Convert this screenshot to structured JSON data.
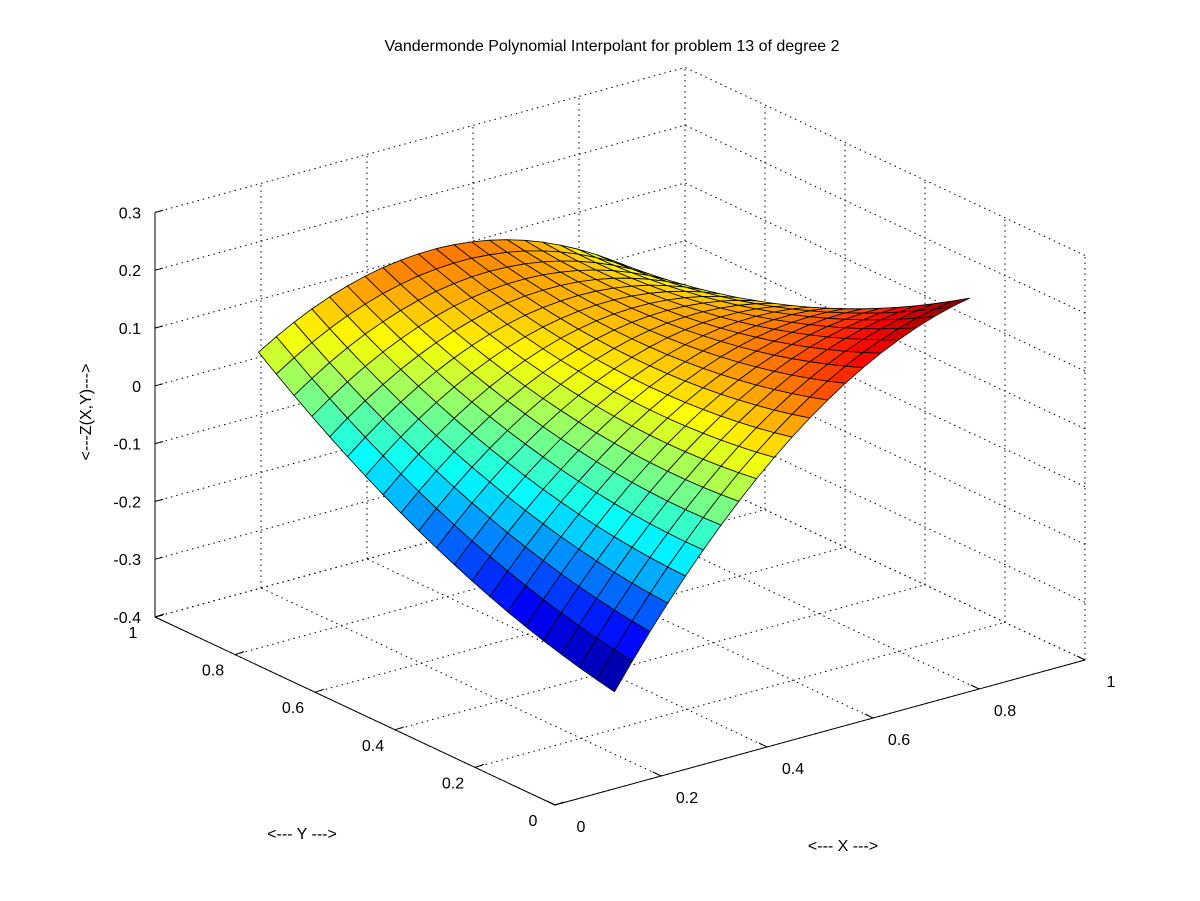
{
  "chart_data": {
    "type": "surface",
    "title": "Vandermonde Polynomial Interpolant for problem 13 of degree 2",
    "xlabel": "<--- X --->",
    "ylabel": "<--- Y --->",
    "zlabel": "<---Z(X,Y)--->",
    "xlim": [
      0,
      1
    ],
    "ylim": [
      0,
      1
    ],
    "zlim": [
      -0.4,
      0.3
    ],
    "xticks": [
      "0",
      "0.2",
      "0.4",
      "0.6",
      "0.8",
      "1"
    ],
    "yticks": [
      "0",
      "0.2",
      "0.4",
      "0.6",
      "0.8",
      "1"
    ],
    "zticks": [
      "-0.4",
      "-0.3",
      "-0.2",
      "-0.1",
      "0",
      "0.1",
      "0.2",
      "0.3"
    ],
    "grid": true,
    "colormap": "jet",
    "surface": {
      "x_range": [
        0.15,
        0.82
      ],
      "y_range": [
        0.05,
        0.94
      ],
      "mesh_size": 20,
      "z_corners": {
        "x_min_y_min": -0.258,
        "x_min_y_max": 0.04,
        "x_max_y_min": 0.255,
        "x_max_y_max": 0.03
      },
      "x_bulge": 0.1,
      "y_bulge": -0.045
    }
  }
}
